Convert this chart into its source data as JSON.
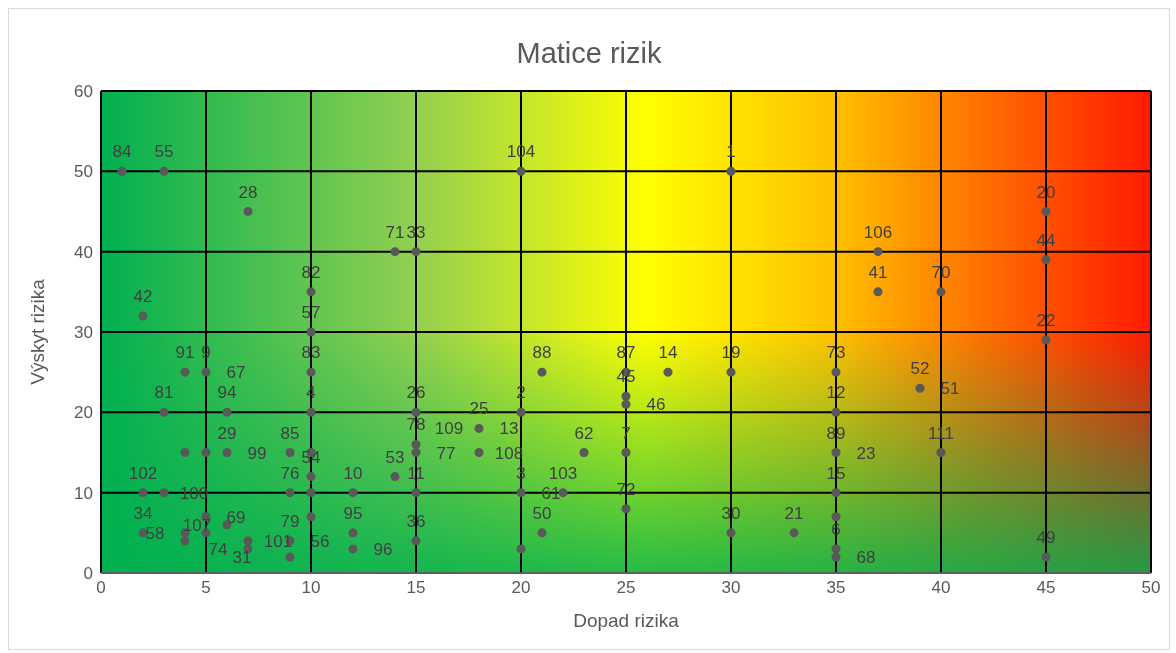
{
  "chart_data": {
    "type": "scatter",
    "title": "Matice rizik",
    "xlabel": "Dopad rizika",
    "ylabel": "Výskyt rizika",
    "x": [
      1,
      3,
      7,
      14,
      15,
      20,
      30,
      2,
      10,
      10,
      4,
      5,
      10,
      3,
      6,
      10,
      4,
      5,
      6,
      9,
      10,
      10,
      2,
      3,
      9,
      10,
      12,
      5,
      10,
      6,
      2,
      4,
      4,
      5,
      7,
      7,
      9,
      9,
      12,
      12,
      21,
      20,
      15,
      18,
      15,
      15,
      18,
      14,
      15,
      20,
      22,
      15,
      20,
      21,
      25,
      27,
      30,
      35,
      25,
      25,
      39,
      35,
      23,
      25,
      35,
      40,
      25,
      30,
      33,
      35,
      35,
      35,
      35,
      45,
      45,
      37,
      37,
      40,
      45,
      45
    ],
    "values": [
      50,
      50,
      45,
      40,
      40,
      50,
      50,
      32,
      35,
      30,
      25,
      25,
      25,
      20,
      20,
      20,
      15,
      15,
      15,
      15,
      15,
      12,
      10,
      10,
      10,
      10,
      10,
      7,
      7,
      6,
      5,
      5,
      4,
      5,
      4,
      3,
      4,
      2,
      5,
      3,
      25,
      20,
      20,
      18,
      16,
      15,
      15,
      12,
      10,
      10,
      10,
      4,
      3,
      5,
      25,
      25,
      25,
      25,
      22,
      21,
      23,
      20,
      15,
      15,
      15,
      15,
      8,
      5,
      5,
      10,
      7,
      3,
      2,
      2,
      29,
      40,
      35,
      35,
      45,
      39
    ],
    "color": "#595959",
    "marker": "circle",
    "xlim": [
      0,
      50
    ],
    "xticks": [
      0,
      5,
      10,
      15,
      20,
      25,
      30,
      35,
      40,
      45,
      50
    ],
    "ylim": [
      0,
      60
    ],
    "yticks": [
      0,
      10,
      20,
      30,
      40,
      50,
      60
    ],
    "grid": true,
    "legend": false,
    "annotations": [
      {
        "text": "84",
        "x": 1,
        "y": 50
      },
      {
        "text": "55",
        "x": 3,
        "y": 50
      },
      {
        "text": "104",
        "x": 20,
        "y": 50
      },
      {
        "text": "1",
        "x": 30,
        "y": 50
      },
      {
        "text": "28",
        "x": 7,
        "y": 45
      },
      {
        "text": "20",
        "x": 45,
        "y": 45
      },
      {
        "text": "71",
        "x": 14,
        "y": 40
      },
      {
        "text": "33",
        "x": 15,
        "y": 40
      },
      {
        "text": "106",
        "x": 37,
        "y": 40
      },
      {
        "text": "44",
        "x": 45,
        "y": 39
      },
      {
        "text": "82",
        "x": 10,
        "y": 35
      },
      {
        "text": "41",
        "x": 37,
        "y": 35
      },
      {
        "text": "70",
        "x": 40,
        "y": 35
      },
      {
        "text": "42",
        "x": 2,
        "y": 32
      },
      {
        "text": "57",
        "x": 10,
        "y": 30
      },
      {
        "text": "22",
        "x": 45,
        "y": 29
      },
      {
        "text": "91",
        "x": 4,
        "y": 25
      },
      {
        "text": "9",
        "x": 5,
        "y": 25
      },
      {
        "text": "67",
        "x": 5,
        "y": 25
      },
      {
        "text": "83",
        "x": 10,
        "y": 25
      },
      {
        "text": "88",
        "x": 21,
        "y": 25
      },
      {
        "text": "87",
        "x": 25,
        "y": 25
      },
      {
        "text": "14",
        "x": 27,
        "y": 25
      },
      {
        "text": "19",
        "x": 30,
        "y": 25
      },
      {
        "text": "73",
        "x": 35,
        "y": 25
      },
      {
        "text": "52",
        "x": 39,
        "y": 23
      },
      {
        "text": "51",
        "x": 39,
        "y": 23
      },
      {
        "text": "45",
        "x": 25,
        "y": 22
      },
      {
        "text": "46",
        "x": 25,
        "y": 21
      },
      {
        "text": "81",
        "x": 3,
        "y": 20
      },
      {
        "text": "94",
        "x": 6,
        "y": 20
      },
      {
        "text": "4",
        "x": 10,
        "y": 20
      },
      {
        "text": "26",
        "x": 15,
        "y": 20
      },
      {
        "text": "2",
        "x": 20,
        "y": 20
      },
      {
        "text": "12",
        "x": 35,
        "y": 20
      },
      {
        "text": "25",
        "x": 18,
        "y": 18
      },
      {
        "text": "13",
        "x": 18,
        "y": 18
      },
      {
        "text": "109",
        "x": 18,
        "y": 18
      },
      {
        "text": "78",
        "x": 15,
        "y": 16
      },
      {
        "text": "77",
        "x": 15,
        "y": 15
      },
      {
        "text": "29",
        "x": 6,
        "y": 15
      },
      {
        "text": "99",
        "x": 6,
        "y": 15
      },
      {
        "text": "85",
        "x": 9,
        "y": 15
      },
      {
        "text": "108",
        "x": 18,
        "y": 15
      },
      {
        "text": "62",
        "x": 23,
        "y": 15
      },
      {
        "text": "7",
        "x": 25,
        "y": 15
      },
      {
        "text": "89",
        "x": 35,
        "y": 15
      },
      {
        "text": "23",
        "x": 35,
        "y": 15
      },
      {
        "text": "111",
        "x": 40,
        "y": 15
      },
      {
        "text": "54",
        "x": 10,
        "y": 12
      },
      {
        "text": "53",
        "x": 14,
        "y": 12
      },
      {
        "text": "102",
        "x": 2,
        "y": 10
      },
      {
        "text": "100",
        "x": 3,
        "y": 10
      },
      {
        "text": "76",
        "x": 9,
        "y": 10
      },
      {
        "text": "10",
        "x": 12,
        "y": 10
      },
      {
        "text": "11",
        "x": 15,
        "y": 10
      },
      {
        "text": "3",
        "x": 20,
        "y": 10
      },
      {
        "text": "61",
        "x": 20,
        "y": 10
      },
      {
        "text": "103",
        "x": 22,
        "y": 10
      },
      {
        "text": "15",
        "x": 35,
        "y": 10
      },
      {
        "text": "72",
        "x": 25,
        "y": 8
      },
      {
        "text": "69",
        "x": 5,
        "y": 7
      },
      {
        "text": "107",
        "x": 6,
        "y": 6
      },
      {
        "text": "34",
        "x": 2,
        "y": 5
      },
      {
        "text": "58",
        "x": 4,
        "y": 5
      },
      {
        "text": "95",
        "x": 12,
        "y": 5
      },
      {
        "text": "50",
        "x": 21,
        "y": 5
      },
      {
        "text": "30",
        "x": 30,
        "y": 5
      },
      {
        "text": "21",
        "x": 33,
        "y": 5
      },
      {
        "text": "101",
        "x": 7,
        "y": 4
      },
      {
        "text": "79",
        "x": 9,
        "y": 4
      },
      {
        "text": "56",
        "x": 9,
        "y": 4
      },
      {
        "text": "36",
        "x": 15,
        "y": 4
      },
      {
        "text": "74",
        "x": 7,
        "y": 3
      },
      {
        "text": "96",
        "x": 12,
        "y": 3
      },
      {
        "text": "6",
        "x": 35,
        "y": 3
      },
      {
        "text": "31",
        "x": 9,
        "y": 2
      },
      {
        "text": "68",
        "x": 35,
        "y": 2
      },
      {
        "text": "49",
        "x": 45,
        "y": 2
      }
    ]
  }
}
